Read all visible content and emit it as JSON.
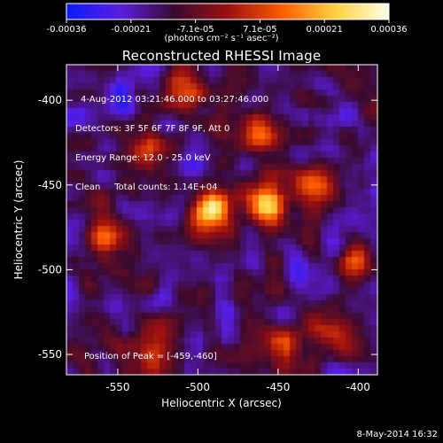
{
  "colorbar": {
    "tick_labels": [
      "-0.00036",
      "-0.00021",
      "-7.1e-05",
      "7.1e-05",
      "0.00021",
      "0.00036"
    ],
    "units_label": "(photons cm⁻² s⁻¹ asec⁻²)",
    "colors": [
      "#0a1bff",
      "#5b1ee0",
      "#3a0a30",
      "#9a1010",
      "#ff5a00",
      "#ffd040",
      "#ffffe8"
    ]
  },
  "plot": {
    "title": "Reconstructed RHESSI Image",
    "annotations": [
      "4-Aug-2012 03:21:46.000 to 03:27:46.000",
      "Detectors: 3F 5F 6F 7F 8F 9F, Att 0",
      "Energy Range: 12.0 - 25.0 keV",
      "Clean     Total counts: 1.14E+04"
    ],
    "peak_label": "Position of Peak = [-459,-460]",
    "x_label": "Heliocentric X (arcsec)",
    "y_label": "Heliocentric Y (arcsec)",
    "x_ticks": [
      "-550",
      "-500",
      "-450",
      "-400"
    ],
    "y_ticks": [
      "-400",
      "-450",
      "-500",
      "-550"
    ],
    "x_range": [
      -582,
      -388
    ],
    "y_range": [
      -562,
      -379
    ],
    "x_tick_values": [
      -550,
      -500,
      -450,
      -400
    ],
    "y_tick_values": [
      -400,
      -450,
      -500,
      -550
    ],
    "sources": [
      {
        "x": -459,
        "y": -460,
        "peak": 1.0
      },
      {
        "x": -492,
        "y": -465,
        "peak": 0.85
      },
      {
        "x": -532,
        "y": -432,
        "peak": 0.55
      },
      {
        "x": -463,
        "y": -418,
        "peak": 0.5
      },
      {
        "x": -425,
        "y": -450,
        "peak": 0.5
      },
      {
        "x": -405,
        "y": -495,
        "peak": 0.45
      },
      {
        "x": -415,
        "y": -537,
        "peak": 0.5
      },
      {
        "x": -555,
        "y": -480,
        "peak": 0.5
      },
      {
        "x": -525,
        "y": -545,
        "peak": 0.4
      },
      {
        "x": -445,
        "y": -545,
        "peak": 0.45
      },
      {
        "x": -508,
        "y": -395,
        "peak": 0.4
      }
    ]
  },
  "footer": {
    "date": "8-May-2014 16:32"
  }
}
